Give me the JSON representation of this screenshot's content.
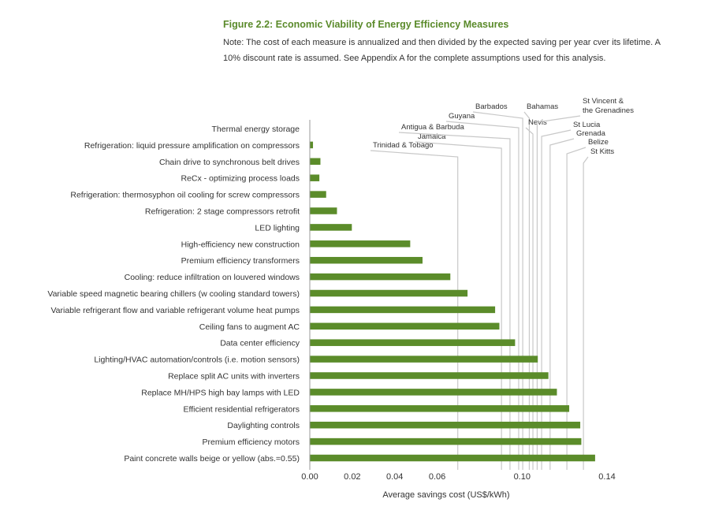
{
  "figure": {
    "title": "Figure 2.2: Economic Viability of Energy Efficiency Measures",
    "note": "Note: The cost of each measure is annualized and then divided by the expected saving per year cver its lifetime. A 10% discount rate is assumed. See Appendix A for the complete assumptions used for this analysis."
  },
  "colors": {
    "bar": "#5b8c2a",
    "benchmark_line": "#c8c8c8",
    "title": "#5a8a2a",
    "axis": "#999999"
  },
  "chart_data": {
    "type": "bar",
    "orientation": "horizontal",
    "categories": [
      "Thermal energy storage",
      "Refrigeration: liquid pressure amplification on compressors",
      "Chain drive to synchronous belt drives",
      "ReCx -  optimizing process loads",
      "Refrigeration: thermosyphon oil cooling for screw compressors",
      "Refrigeration: 2 stage compressors retrofit",
      "LED lighting",
      "High-efficiency new construction",
      "Premium efficiency transformers",
      "Cooling: reduce infiltration on louvered windows",
      "Variable speed magnetic bearing chillers (w cooling standard towers)",
      "Variable refrigerant flow and variable refrigerant volume heat pumps",
      "Ceiling fans to augment AC",
      "Data center efficiency",
      "Lighting/HVAC automation/controls (i.e. motion sensors)",
      "Replace split AC units with inverters",
      "Replace MH/HPS high bay lamps with LED",
      "Efficient residential refrigerators",
      "Daylighting controls",
      "Premium efficiency motors",
      "Paint concrete walls beige or yellow (abs.=0.55)"
    ],
    "values": [
      0.0,
      0.0015,
      0.005,
      0.0045,
      0.0077,
      0.0128,
      0.0198,
      0.0473,
      0.0531,
      0.0662,
      0.0743,
      0.0873,
      0.0893,
      0.0967,
      0.1074,
      0.1124,
      0.1164,
      0.1222,
      0.1274,
      0.1279,
      0.1344
    ],
    "xlabel": "Average savings cost (US$/kWh)",
    "xlim": [
      0,
      0.14
    ],
    "xticks": [
      {
        "value": 0.0,
        "label": "0.00"
      },
      {
        "value": 0.02,
        "label": "0.02"
      },
      {
        "value": 0.04,
        "label": "0.04"
      },
      {
        "value": 0.06,
        "label": "0.06"
      },
      {
        "value": 0.1,
        "label": "0.10"
      },
      {
        "value": 0.14,
        "label": "0.14"
      }
    ],
    "benchmarks": [
      {
        "name": "Trinidad & Tobago",
        "value": 0.0697
      },
      {
        "name": "Jamaica",
        "value": 0.0903
      },
      {
        "name": "Antigua & Barbuda",
        "value": 0.0943
      },
      {
        "name": "Guyana",
        "value": 0.0984
      },
      {
        "name": "Barbados",
        "value": 0.1003
      },
      {
        "name": "Bahamas",
        "value": 0.1034
      },
      {
        "name": "Nevis",
        "value": 0.1051
      },
      {
        "name": "St Vincent & the Grenadines",
        "value": 0.1071
      },
      {
        "name": "St Lucia",
        "value": 0.1092
      },
      {
        "name": "Grenada",
        "value": 0.1132
      },
      {
        "name": "Belize",
        "value": 0.1211
      },
      {
        "name": "St Kitts",
        "value": 0.1289
      }
    ],
    "grid": false,
    "legend": "none"
  }
}
